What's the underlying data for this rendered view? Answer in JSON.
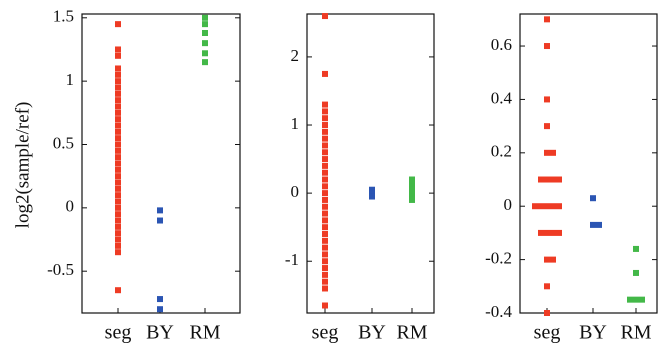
{
  "chart_data": [
    {
      "type": "strip",
      "y_label": "log2(sample/ref)",
      "categories": [
        "seg",
        "BY",
        "RM"
      ],
      "colors": [
        "#ee3b24",
        "#2b55b3",
        "#43b848"
      ],
      "values": [
        [
          1.45,
          1.25,
          1.2,
          1.1,
          1.05,
          1.0,
          0.95,
          0.9,
          0.85,
          0.8,
          0.75,
          0.7,
          0.65,
          0.6,
          0.55,
          0.5,
          0.45,
          0.4,
          0.35,
          0.3,
          0.25,
          0.2,
          0.15,
          0.1,
          0.05,
          0,
          -0.05,
          -0.1,
          -0.15,
          -0.2,
          -0.25,
          -0.3,
          -0.35,
          -0.65
        ],
        [
          -0.02,
          -0.1,
          -0.72,
          -0.8
        ],
        [
          1.5,
          1.45,
          1.38,
          1.3,
          1.22,
          1.15
        ]
      ],
      "ylim": [
        -0.83,
        1.53
      ],
      "yticks": [
        -0.5,
        0,
        0.5,
        1,
        1.5
      ]
    },
    {
      "type": "strip",
      "categories": [
        "seg",
        "BY",
        "RM"
      ],
      "colors": [
        "#ee3b24",
        "#2b55b3",
        "#43b848"
      ],
      "values": [
        [
          2.6,
          1.75,
          1.3,
          1.2,
          1.1,
          1.0,
          0.9,
          0.8,
          0.7,
          0.6,
          0.5,
          0.4,
          0.3,
          0.2,
          0.1,
          0,
          -0.1,
          -0.2,
          -0.3,
          -0.4,
          -0.5,
          -0.6,
          -0.7,
          -0.8,
          -0.9,
          -1.0,
          -1.1,
          -1.2,
          -1.3,
          -1.4,
          -1.65
        ],
        [
          0.05,
          0,
          -0.05
        ],
        [
          0.2,
          0.15,
          0.1,
          0.05,
          0,
          -0.05,
          -0.1
        ]
      ],
      "ylim": [
        -1.76,
        2.63
      ],
      "yticks": [
        -1,
        0,
        1,
        2
      ]
    },
    {
      "type": "strip",
      "categories": [
        "seg",
        "BY",
        "RM"
      ],
      "colors": [
        "#ee3b24",
        "#2b55b3",
        "#43b848"
      ],
      "values": [
        [
          0.7,
          0.6,
          0.4,
          0.3,
          0.2,
          0.2,
          0.1,
          0.1,
          0.1,
          0.1,
          0,
          0,
          0,
          0,
          0,
          -0.1,
          -0.1,
          -0.1,
          -0.1,
          -0.2,
          -0.2,
          -0.3,
          -0.4
        ],
        [
          0.03,
          -0.07,
          -0.07
        ],
        [
          -0.16,
          -0.25,
          -0.35,
          -0.35,
          -0.35
        ]
      ],
      "ylim": [
        -0.4,
        0.72
      ],
      "yticks": [
        -0.4,
        -0.2,
        0,
        0.2,
        0.4,
        0.6
      ]
    }
  ]
}
